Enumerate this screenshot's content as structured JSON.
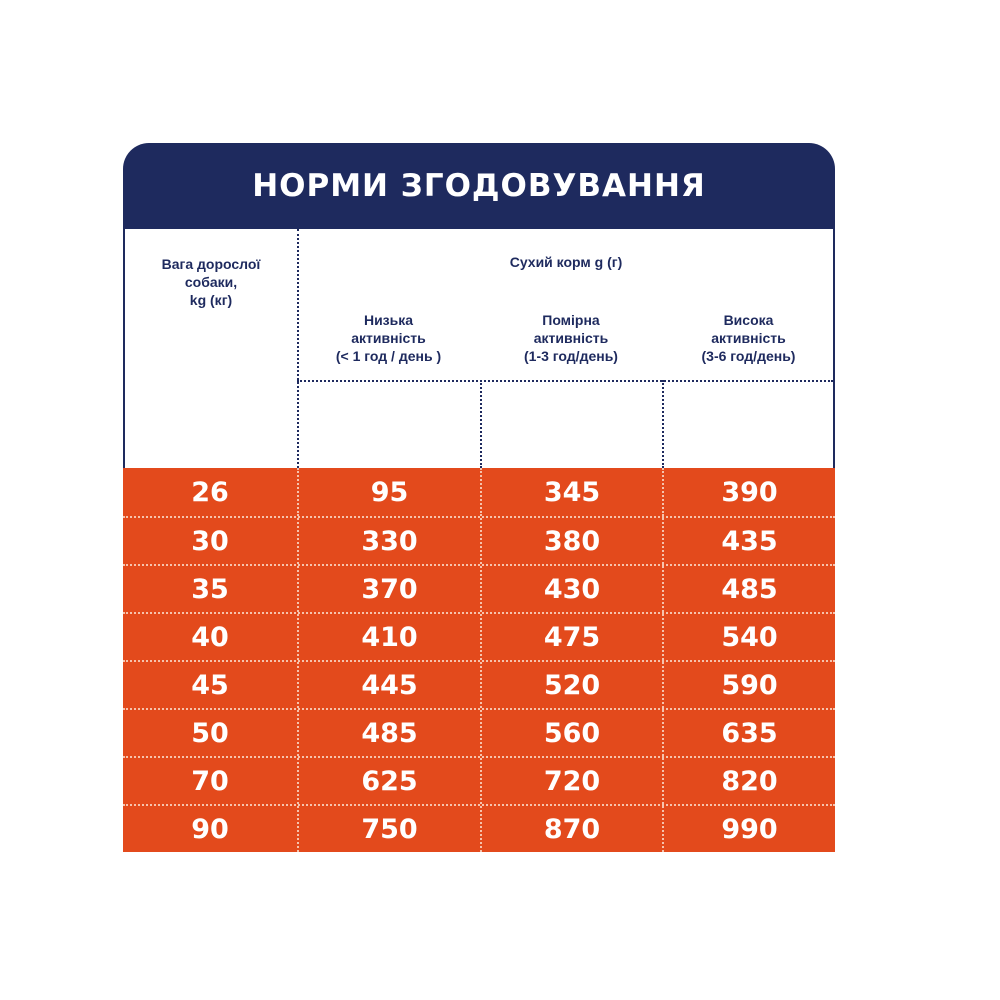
{
  "title": "НОРМИ ЗГОДОВУВАННЯ",
  "header": {
    "weight_lines": [
      "Вага дорослої",
      "собаки,",
      "kg (кг)"
    ],
    "dry_food": "Сухий корм g (г)",
    "low_lines": [
      "Низька",
      "активність",
      "(< 1 год / день )"
    ],
    "moderate_lines": [
      "Помірна",
      "активність",
      "(1-3 год/день)"
    ],
    "high_lines": [
      "Висока",
      "активність",
      "(3-6 год/день)"
    ]
  },
  "rows": [
    [
      "26",
      "95",
      "345",
      "390"
    ],
    [
      "30",
      "330",
      "380",
      "435"
    ],
    [
      "35",
      "370",
      "430",
      "485"
    ],
    [
      "40",
      "410",
      "475",
      "540"
    ],
    [
      "45",
      "445",
      "520",
      "590"
    ],
    [
      "50",
      "485",
      "560",
      "635"
    ],
    [
      "70",
      "625",
      "720",
      "820"
    ],
    [
      "90",
      "750",
      "870",
      "990"
    ]
  ],
  "colors": {
    "navy": "#1e2a5e",
    "orange": "#e34a1c",
    "white": "#ffffff"
  }
}
